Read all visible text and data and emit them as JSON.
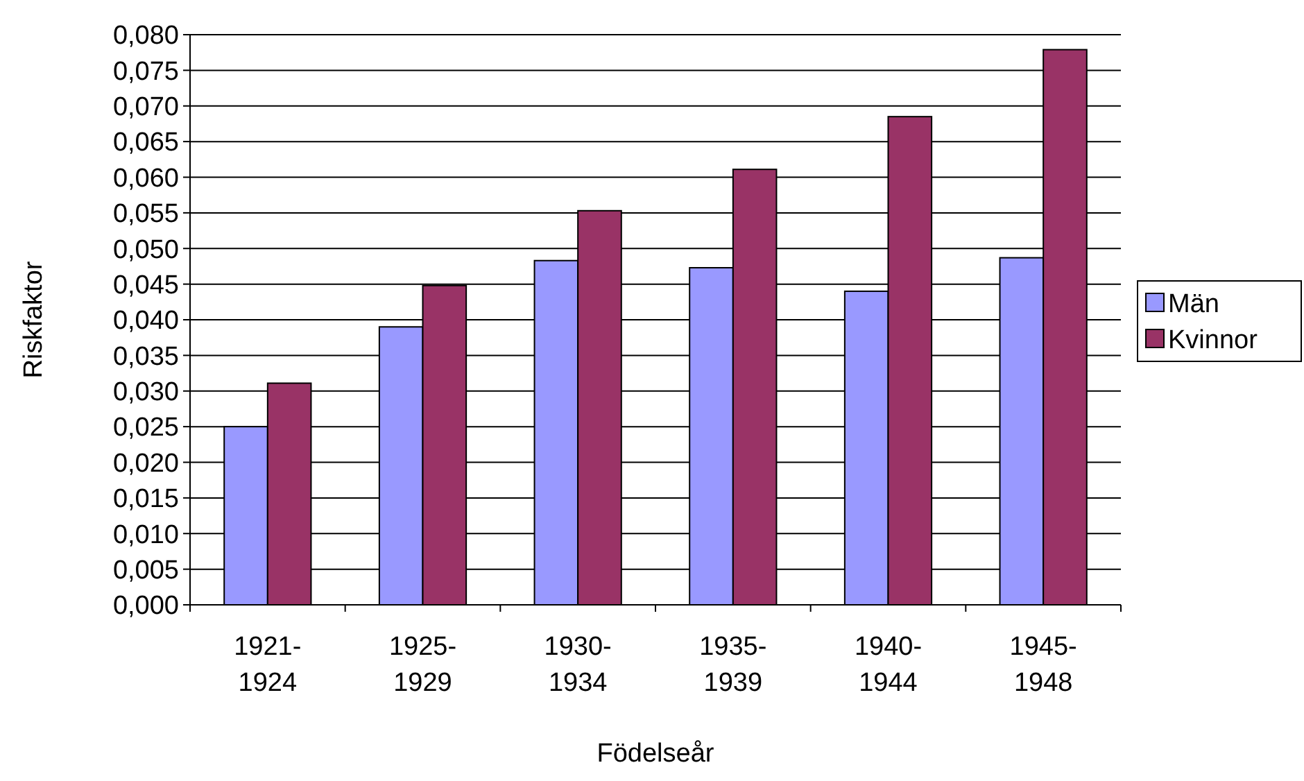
{
  "chart_data": {
    "type": "bar",
    "xlabel": "Födelseår",
    "ylabel": "Riskfaktor",
    "categories": [
      "1921-1924",
      "1925-1929",
      "1930-1934",
      "1935-1939",
      "1940-1944",
      "1945-1948"
    ],
    "series": [
      {
        "name": "Män",
        "color": "#9999ff",
        "values": [
          0.025,
          0.039,
          0.0483,
          0.0473,
          0.044,
          0.0487
        ]
      },
      {
        "name": "Kvinnor",
        "color": "#993366",
        "values": [
          0.0311,
          0.0448,
          0.0553,
          0.0611,
          0.0685,
          0.0779
        ]
      }
    ],
    "ylim": [
      0,
      0.08
    ],
    "yticks": [
      {
        "value": 0,
        "label": "0,000"
      },
      {
        "value": 0.005,
        "label": "0,005"
      },
      {
        "value": 0.01,
        "label": "0,010"
      },
      {
        "value": 0.015,
        "label": "0,015"
      },
      {
        "value": 0.02,
        "label": "0,020"
      },
      {
        "value": 0.025,
        "label": "0,025"
      },
      {
        "value": 0.03,
        "label": "0,030"
      },
      {
        "value": 0.035,
        "label": "0,035"
      },
      {
        "value": 0.04,
        "label": "0,040"
      },
      {
        "value": 0.045,
        "label": "0,045"
      },
      {
        "value": 0.05,
        "label": "0,050"
      },
      {
        "value": 0.055,
        "label": "0,055"
      },
      {
        "value": 0.06,
        "label": "0,060"
      },
      {
        "value": 0.065,
        "label": "0,065"
      },
      {
        "value": 0.07,
        "label": "0,070"
      },
      {
        "value": 0.075,
        "label": "0,075"
      },
      {
        "value": 0.08,
        "label": "0,080"
      }
    ],
    "grid": "y",
    "legend": "right"
  }
}
